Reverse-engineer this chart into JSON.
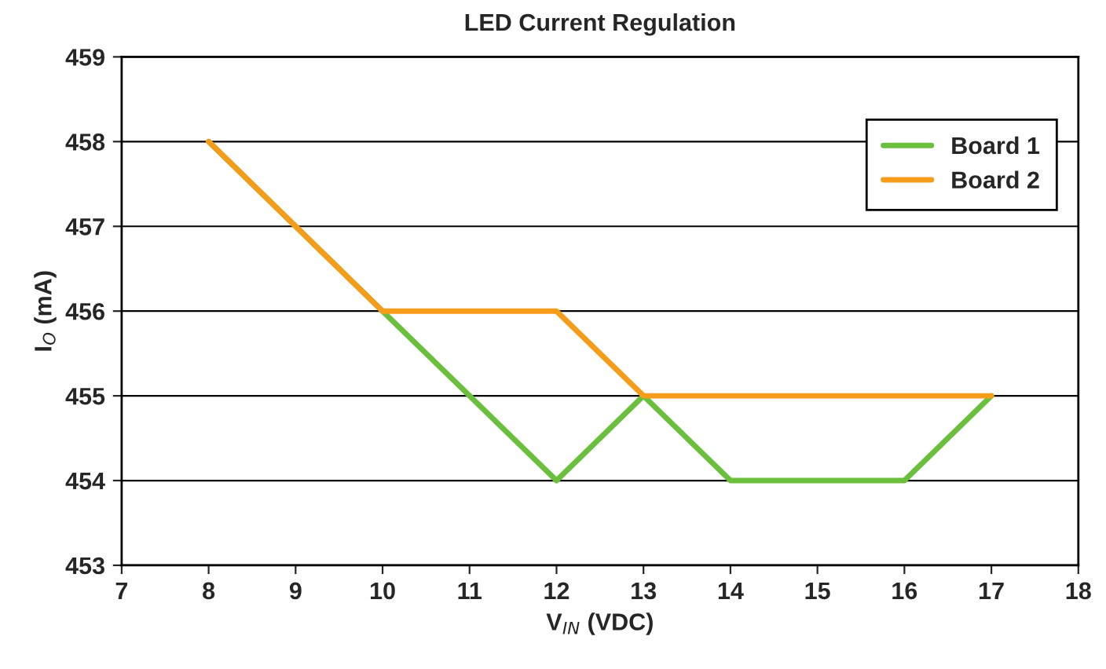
{
  "chart_data": {
    "type": "line",
    "title": "LED Current Regulation",
    "xlabel": "V$_{IN}$ (VDC)",
    "ylabel": "I$_{O}$ (mA)",
    "x": [
      8,
      9,
      10,
      11,
      12,
      13,
      14,
      15,
      16,
      17
    ],
    "series": [
      {
        "name": "Board 1",
        "color": "#6abf3c",
        "values": [
          458,
          457,
          456,
          455,
          454,
          455,
          454,
          454,
          454,
          455
        ]
      },
      {
        "name": "Board 2",
        "color": "#f59c1a",
        "values": [
          458,
          457,
          456,
          456,
          456,
          455,
          455,
          455,
          455,
          455
        ]
      }
    ],
    "xlim": [
      7,
      18
    ],
    "xticks": [
      7,
      8,
      9,
      10,
      11,
      12,
      13,
      14,
      15,
      16,
      17,
      18
    ],
    "ylim": [
      453,
      459
    ],
    "yticks": [
      453,
      454,
      455,
      456,
      457,
      458,
      459
    ],
    "grid": "y",
    "legend": "top right",
    "marker": "none",
    "line_style": "solid"
  }
}
